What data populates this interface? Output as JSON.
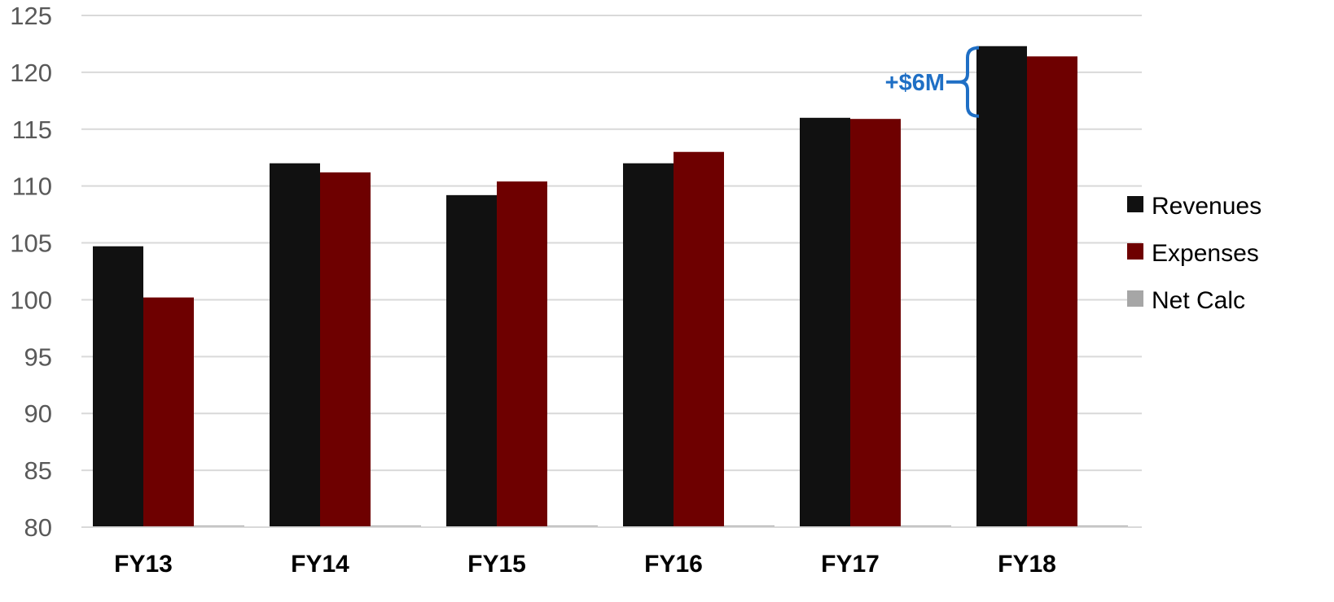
{
  "chart_data": {
    "type": "bar",
    "categories": [
      "FY13",
      "FY14",
      "FY15",
      "FY16",
      "FY17",
      "FY18"
    ],
    "series": [
      {
        "name": "Revenues",
        "color": "#111111",
        "values": [
          104.7,
          112.0,
          109.2,
          112.0,
          116.0,
          122.3
        ]
      },
      {
        "name": "Expenses",
        "color": "#6e0000",
        "values": [
          100.2,
          111.2,
          110.4,
          113.0,
          115.9,
          121.4
        ]
      },
      {
        "name": "Net Calc",
        "color": "#a6a6a6",
        "values": [
          80,
          80,
          80,
          80,
          80,
          80
        ]
      }
    ],
    "ylim": [
      80,
      125
    ],
    "yticks": [
      80,
      85,
      90,
      95,
      100,
      105,
      110,
      115,
      120,
      125
    ],
    "grid": true,
    "legend_position": "right",
    "annotation": {
      "text": "+$6M",
      "color": "#1f6fc5",
      "from_value": 116,
      "to_value": 122.3,
      "category": "FY17"
    }
  }
}
